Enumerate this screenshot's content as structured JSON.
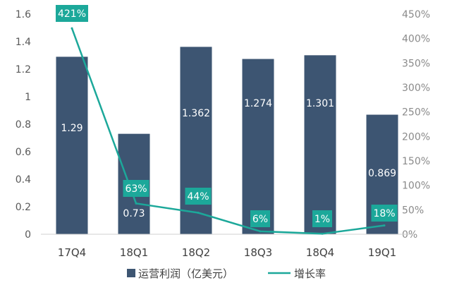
{
  "chart_data": {
    "type": "bar",
    "categories": [
      "17Q4",
      "18Q1",
      "18Q2",
      "18Q3",
      "18Q4",
      "19Q1"
    ],
    "series": [
      {
        "name": "运营利润（亿美元）",
        "type": "bar",
        "axis": "left",
        "values": [
          1.29,
          0.73,
          1.362,
          1.274,
          1.301,
          0.869
        ],
        "labels": [
          "1.29",
          "0.73",
          "1.362",
          "1.274",
          "1.301",
          "0.869"
        ],
        "color": "#3d5572"
      },
      {
        "name": "增长率",
        "type": "line",
        "axis": "right",
        "values": [
          421,
          63,
          44,
          6,
          1,
          18
        ],
        "labels": [
          "421%",
          "63%",
          "44%",
          "6%",
          "1%",
          "18%"
        ],
        "color": "#1ca89a"
      }
    ],
    "y_left": {
      "min": 0,
      "max": 1.6,
      "ticks": [
        "0",
        "0.2",
        "0.4",
        "0.6",
        "0.8",
        "1",
        "1.2",
        "1.4",
        "1.6"
      ]
    },
    "y_right": {
      "min": 0,
      "max": 450,
      "ticks": [
        "0%",
        "50%",
        "100%",
        "150%",
        "200%",
        "250%",
        "300%",
        "350%",
        "400%",
        "450%"
      ]
    },
    "legend_position": "bottom",
    "grid": false
  }
}
